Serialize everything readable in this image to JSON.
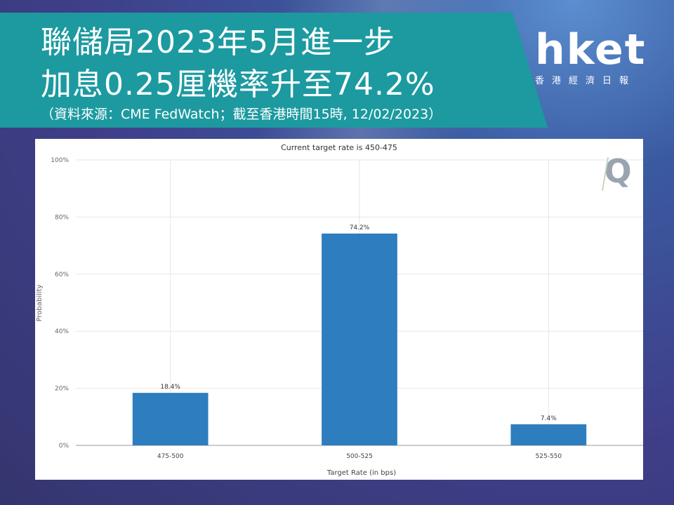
{
  "header": {
    "title_line1": "聯儲局2023年5月進一步",
    "title_line2": "加息0.25厘機率升至74.2%",
    "source": "（資料來源：CME FedWatch；截至香港時間15時, 12/02/2023）"
  },
  "logo": {
    "brand": "hket",
    "subtitle": "香港經濟日報"
  },
  "colors": {
    "banner": "#1c9aa0",
    "bar": "#2e7dbe"
  },
  "chart_data": {
    "type": "bar",
    "title": "Current target rate is 450-475",
    "xlabel": "Target Rate (in bps)",
    "ylabel": "Probability",
    "categories": [
      "475-500",
      "500-525",
      "525-550"
    ],
    "values": [
      18.4,
      74.2,
      7.4
    ],
    "value_labels": [
      "18.4%",
      "74.2%",
      "7.4%"
    ],
    "ylim": [
      0,
      100
    ],
    "yticks": [
      0,
      20,
      40,
      60,
      80,
      100
    ],
    "ytick_labels": [
      "0%",
      "20%",
      "40%",
      "60%",
      "80%",
      "100%"
    ],
    "grid": true,
    "watermark_icon": "q-icon"
  }
}
